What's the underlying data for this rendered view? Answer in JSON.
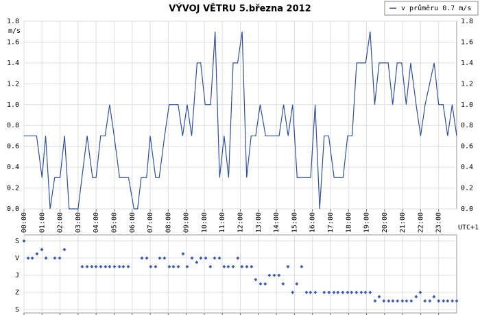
{
  "chart_data": [
    {
      "type": "line",
      "title": "VÝVOJ VĚTRU  5.března 2012",
      "y_label": "m/s",
      "x_label": "UTC+1",
      "x": [
        0,
        0.7,
        1.0,
        1.2,
        1.45,
        1.7,
        2.0,
        2.25,
        2.5,
        3.0,
        3.5,
        3.8,
        4.0,
        4.25,
        4.5,
        4.75,
        5.0,
        5.3,
        5.8,
        6.1,
        6.3,
        6.5,
        6.8,
        7.0,
        7.3,
        7.5,
        7.8,
        8.05,
        8.55,
        8.8,
        9.05,
        9.3,
        9.6,
        9.8,
        10.05,
        10.35,
        10.6,
        10.85,
        11.1,
        11.35,
        11.6,
        11.85,
        12.1,
        12.35,
        12.6,
        12.85,
        13.1,
        13.4,
        14.15,
        14.4,
        14.65,
        14.9,
        15.15,
        15.9,
        16.15,
        16.4,
        16.65,
        16.9,
        17.2,
        17.7,
        17.95,
        18.2,
        18.45,
        18.95,
        19.2,
        19.45,
        19.7,
        20.2,
        20.45,
        20.7,
        20.95,
        21.2,
        21.45,
        21.75,
        22.0,
        22.25,
        22.75,
        23.0,
        23.25,
        23.5,
        23.75,
        24.0
      ],
      "series": [
        {
          "name": "v průměru 0.7 m/s",
          "color": "#2b4f9e",
          "values": [
            0.7,
            0.7,
            0.3,
            0.7,
            0,
            0.3,
            0.3,
            0.7,
            0,
            0,
            0.7,
            0.3,
            0.3,
            0.7,
            0.7,
            1.0,
            0.7,
            0.3,
            0.3,
            0,
            0,
            0.3,
            0.3,
            0.7,
            0.3,
            0.3,
            0.7,
            1.0,
            1.0,
            0.7,
            1.0,
            0.7,
            1.4,
            1.4,
            1.0,
            1.0,
            1.7,
            0.3,
            0.7,
            0.3,
            1.4,
            1.4,
            1.7,
            0.3,
            0.7,
            0.7,
            1.0,
            0.7,
            0.7,
            1.0,
            0.7,
            1.0,
            0.3,
            0.3,
            1.0,
            0,
            0.7,
            0.7,
            0.3,
            0.3,
            0.7,
            0.7,
            1.4,
            1.4,
            1.7,
            1.0,
            1.4,
            1.4,
            1.0,
            1.4,
            1.4,
            1.0,
            1.4,
            1.0,
            0.7,
            1.0,
            1.4,
            1.0,
            1.0,
            0.7,
            1.0,
            0.7
          ]
        }
      ],
      "xlim": [
        0,
        24
      ],
      "xticks": [
        {
          "value": 0,
          "label": "00:00"
        },
        {
          "value": 1,
          "label": "01:00"
        },
        {
          "value": 2,
          "label": "02:00"
        },
        {
          "value": 3,
          "label": "03:00"
        },
        {
          "value": 4,
          "label": "04:00"
        },
        {
          "value": 5,
          "label": "05:00"
        },
        {
          "value": 6,
          "label": "06:00"
        },
        {
          "value": 7,
          "label": "07:00"
        },
        {
          "value": 8,
          "label": "08:00"
        },
        {
          "value": 9,
          "label": "09:00"
        },
        {
          "value": 10,
          "label": "10:00"
        },
        {
          "value": 11,
          "label": "11:00"
        },
        {
          "value": 12,
          "label": "12:00"
        },
        {
          "value": 13,
          "label": "13:00"
        },
        {
          "value": 14,
          "label": "14:00"
        },
        {
          "value": 15,
          "label": "15:00"
        },
        {
          "value": 16,
          "label": "16:00"
        },
        {
          "value": 17,
          "label": "17:00"
        },
        {
          "value": 18,
          "label": "18:00"
        },
        {
          "value": 19,
          "label": "19:00"
        },
        {
          "value": 20,
          "label": "20:00"
        },
        {
          "value": 21,
          "label": "21:00"
        },
        {
          "value": 22,
          "label": "22:00"
        },
        {
          "value": 23,
          "label": "23:00"
        }
      ],
      "ylim": [
        0,
        1.8
      ],
      "yticks": [
        {
          "value": 0,
          "label": "0.0"
        },
        {
          "value": 0.2,
          "label": "0.2"
        },
        {
          "value": 0.4,
          "label": "0.4"
        },
        {
          "value": 0.6,
          "label": "0.6"
        },
        {
          "value": 0.8,
          "label": "0.8"
        },
        {
          "value": 1.0,
          "label": "1.0"
        },
        {
          "value": 1.2,
          "label": "1.2"
        },
        {
          "value": 1.4,
          "label": "1.4"
        },
        {
          "value": 1.6,
          "label": "1.6"
        },
        {
          "value": 1.8,
          "label": "1.8"
        }
      ],
      "grid": true,
      "legend": "upper right"
    },
    {
      "type": "scatter",
      "color": "#3a5bb0",
      "x": [
        0,
        0.23,
        0.46,
        0.72,
        0.99,
        1.22,
        1.71,
        1.98,
        2.24,
        3.23,
        3.5,
        3.76,
        3.99,
        4.26,
        4.52,
        4.75,
        5.02,
        5.29,
        5.51,
        5.78,
        6.54,
        6.81,
        7.03,
        7.3,
        7.53,
        7.79,
        8.06,
        8.29,
        8.56,
        8.82,
        9.05,
        9.32,
        9.58,
        9.81,
        10.08,
        10.34,
        10.57,
        10.84,
        11.1,
        11.33,
        11.6,
        11.86,
        12.09,
        12.36,
        12.62,
        12.85,
        13.12,
        13.38,
        13.61,
        13.88,
        14.14,
        14.37,
        14.64,
        14.9,
        15.13,
        15.4,
        15.67,
        15.89,
        16.16,
        16.65,
        16.92,
        17.19,
        17.41,
        17.68,
        17.95,
        18.17,
        18.44,
        18.71,
        18.94,
        19.2,
        19.47,
        19.7,
        19.96,
        20.23,
        20.46,
        20.72,
        20.99,
        21.22,
        21.48,
        21.75,
        21.98,
        22.24,
        22.51,
        22.74,
        23.0,
        23.27,
        23.5,
        23.76,
        24.0
      ],
      "values": [
        0,
        90,
        90,
        67.5,
        45,
        90,
        90,
        90,
        45,
        135,
        135,
        135,
        135,
        135,
        135,
        135,
        135,
        135,
        135,
        135,
        90,
        90,
        135,
        135,
        90,
        90,
        135,
        135,
        135,
        67.5,
        135,
        90,
        112.5,
        90,
        90,
        135,
        90,
        90,
        135,
        135,
        135,
        90,
        135,
        135,
        135,
        202.5,
        225,
        225,
        180,
        180,
        180,
        225,
        135,
        270,
        225,
        135,
        270,
        270,
        270,
        270,
        270,
        270,
        270,
        270,
        270,
        270,
        270,
        270,
        270,
        270,
        315,
        292.5,
        315,
        315,
        315,
        315,
        315,
        315,
        315,
        292.5,
        270,
        315,
        315,
        292.5,
        315,
        315,
        315,
        315,
        315
      ],
      "xlim": [
        0,
        24
      ],
      "xticks": [
        0,
        1,
        2,
        3,
        4,
        5,
        6,
        7,
        8,
        9,
        10,
        11,
        12,
        13,
        14,
        15,
        16,
        17,
        18,
        19,
        20,
        21,
        22,
        23
      ],
      "ylim": [
        -32,
        378
      ],
      "y_inverted": true,
      "yticks": [
        {
          "value": 0,
          "label": "S"
        },
        {
          "value": 90,
          "label": "V"
        },
        {
          "value": 180,
          "label": "J"
        },
        {
          "value": 270,
          "label": "Z"
        },
        {
          "value": 360,
          "label": "S"
        }
      ],
      "grid": true
    }
  ]
}
